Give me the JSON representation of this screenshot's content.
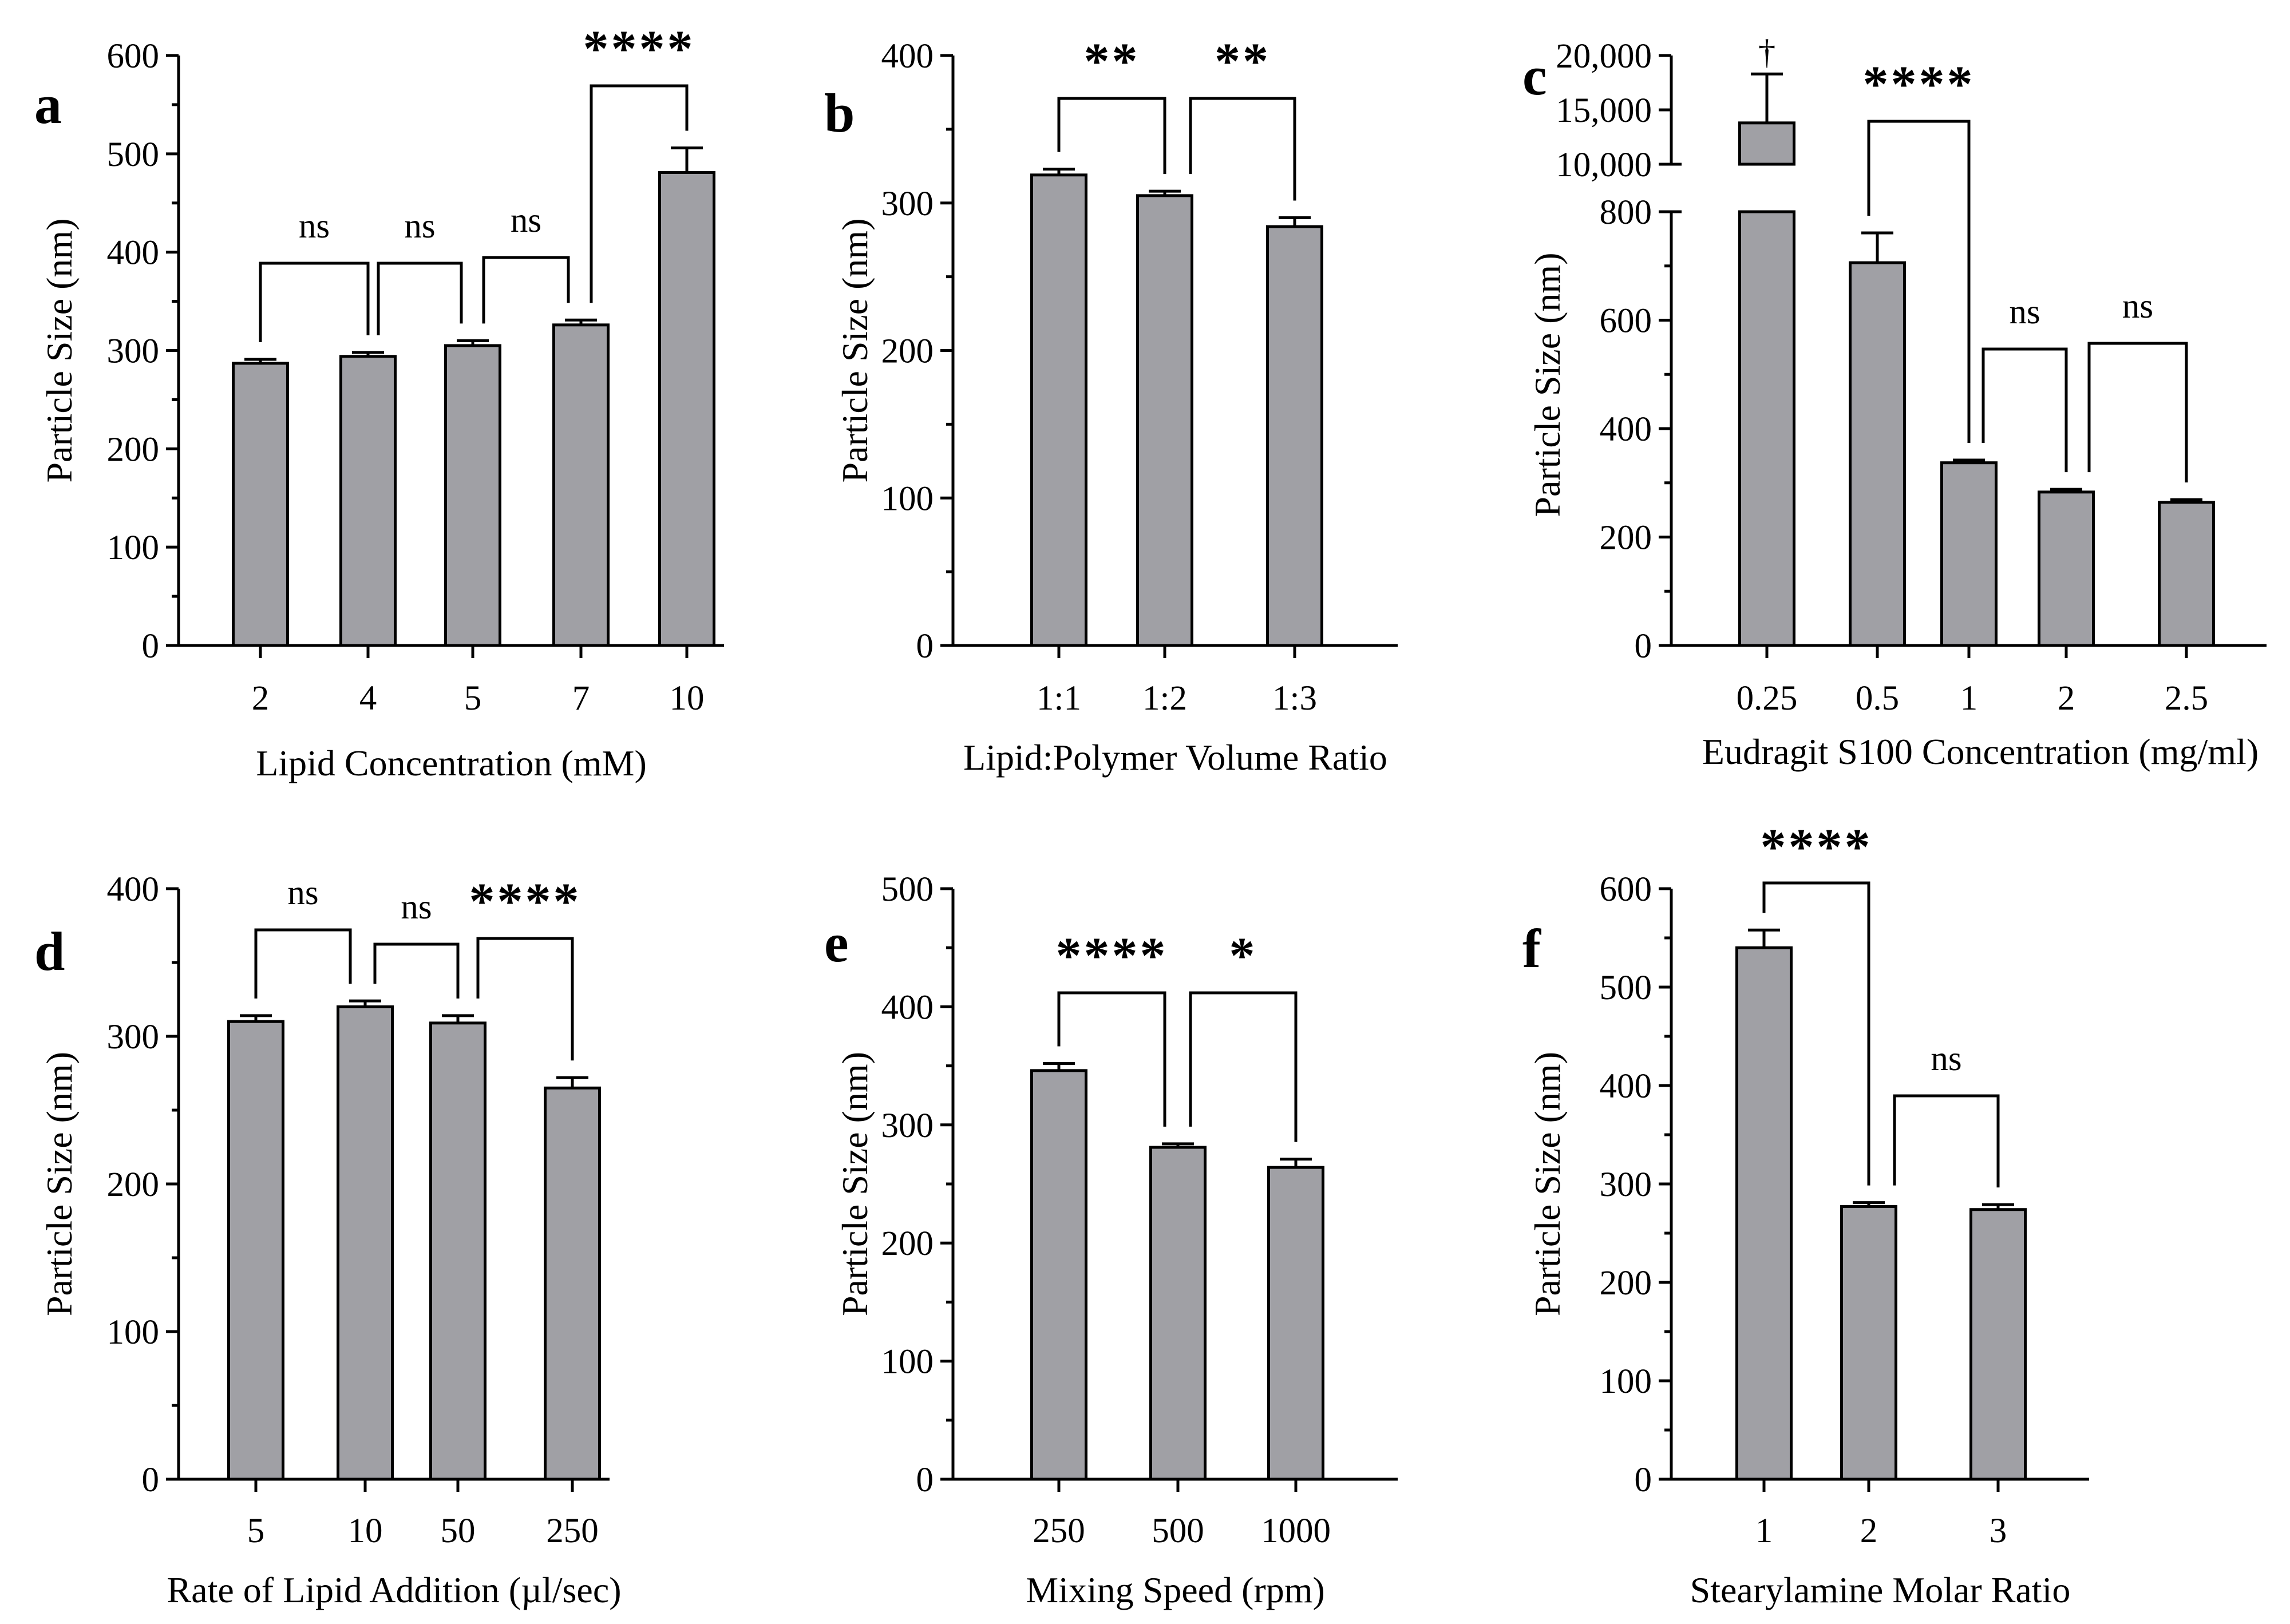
{
  "chart_data": [
    {
      "id": "a",
      "type": "bar",
      "panel_letter": "a",
      "ylabel": "Particle Size (nm)",
      "xlabel": "Lipid Concentration (mM)",
      "ylim": [
        0,
        600
      ],
      "yticks": [
        0,
        100,
        200,
        300,
        400,
        500,
        600
      ],
      "ytick_labels": [
        "0",
        "100",
        "200",
        "300",
        "400",
        "500",
        "600"
      ],
      "categories": [
        "2",
        "4",
        "5",
        "7",
        "10"
      ],
      "values": [
        287,
        294,
        305,
        326,
        481
      ],
      "errors": [
        4,
        4,
        5,
        5,
        25
      ],
      "comparisons": [
        {
          "from": 0,
          "to": 1,
          "label": "ns"
        },
        {
          "from": 1,
          "to": 2,
          "label": "ns"
        },
        {
          "from": 2,
          "to": 3,
          "label": "ns"
        },
        {
          "from": 3,
          "to": 4,
          "label": "****"
        }
      ]
    },
    {
      "id": "b",
      "type": "bar",
      "panel_letter": "b",
      "ylabel": "Particle Size (nm)",
      "xlabel": "Lipid:Polymer Volume Ratio",
      "ylim": [
        0,
        400
      ],
      "yticks": [
        0,
        100,
        200,
        300,
        400
      ],
      "ytick_labels": [
        "0",
        "100",
        "200",
        "300",
        "400"
      ],
      "categories": [
        "1:1",
        "1:2",
        "1:3"
      ],
      "values": [
        319,
        305,
        284
      ],
      "errors": [
        4,
        3,
        6
      ],
      "comparisons": [
        {
          "from": 0,
          "to": 1,
          "label": "**"
        },
        {
          "from": 1,
          "to": 2,
          "label": "**"
        }
      ]
    },
    {
      "id": "c",
      "type": "bar",
      "panel_letter": "c",
      "ylabel": "Particle Size (nm)",
      "xlabel": "Eudragit S100 Concentration (mg/ml)",
      "broken_axis": true,
      "ylim_lower": [
        0,
        800
      ],
      "ylim_upper": [
        10000,
        20000
      ],
      "yticks_lower": [
        0,
        200,
        400,
        600,
        800
      ],
      "ytick_labels_lower": [
        "0",
        "200",
        "400",
        "600",
        "800"
      ],
      "yticks_upper": [
        10000,
        15000,
        20000
      ],
      "ytick_labels_upper": [
        "10,000",
        "15,000",
        "20,000"
      ],
      "categories": [
        "0.25",
        "0.5",
        "1",
        "2",
        "2.5"
      ],
      "values": [
        13800,
        706,
        337,
        283,
        264
      ],
      "errors": [
        4500,
        55,
        5,
        5,
        5
      ],
      "bar_annotations": [
        {
          "index": 0,
          "label": "†"
        }
      ],
      "comparisons": [
        {
          "from": 1,
          "to": 2,
          "label": "****"
        },
        {
          "from": 2,
          "to": 3,
          "label": "ns"
        },
        {
          "from": 3,
          "to": 4,
          "label": "ns"
        }
      ]
    },
    {
      "id": "d",
      "type": "bar",
      "panel_letter": "d",
      "ylabel": "Particle Size (nm)",
      "xlabel": "Rate of Lipid Addition (µl/sec)",
      "ylim": [
        0,
        400
      ],
      "yticks": [
        0,
        100,
        200,
        300,
        400
      ],
      "ytick_labels": [
        "0",
        "100",
        "200",
        "300",
        "400"
      ],
      "categories": [
        "5",
        "10",
        "50",
        "250"
      ],
      "values": [
        310,
        320,
        309,
        265
      ],
      "errors": [
        4,
        4,
        5,
        7
      ],
      "comparisons": [
        {
          "from": 0,
          "to": 1,
          "label": "ns"
        },
        {
          "from": 1,
          "to": 2,
          "label": "ns"
        },
        {
          "from": 2,
          "to": 3,
          "label": "****"
        }
      ]
    },
    {
      "id": "e",
      "type": "bar",
      "panel_letter": "e",
      "ylabel": "Particle Size (nm)",
      "xlabel": "Mixing Speed (rpm)",
      "ylim": [
        0,
        500
      ],
      "yticks": [
        0,
        100,
        200,
        300,
        400,
        500
      ],
      "ytick_labels": [
        "0",
        "100",
        "200",
        "300",
        "400",
        "500"
      ],
      "categories": [
        "250",
        "500",
        "1000"
      ],
      "values": [
        346,
        281,
        264
      ],
      "errors": [
        6,
        3,
        7
      ],
      "comparisons": [
        {
          "from": 0,
          "to": 1,
          "label": "****"
        },
        {
          "from": 1,
          "to": 2,
          "label": "*"
        }
      ]
    },
    {
      "id": "f",
      "type": "bar",
      "panel_letter": "f",
      "ylabel": "Particle Size (nm)",
      "xlabel": "Stearylamine Molar Ratio",
      "ylim": [
        0,
        600
      ],
      "yticks": [
        0,
        100,
        200,
        300,
        400,
        500,
        600
      ],
      "ytick_labels": [
        "0",
        "100",
        "200",
        "300",
        "400",
        "500",
        "600"
      ],
      "categories": [
        "1",
        "2",
        "3"
      ],
      "values": [
        540,
        277,
        274
      ],
      "errors": [
        18,
        4,
        5
      ],
      "comparisons": [
        {
          "from": 0,
          "to": 1,
          "label": "****"
        },
        {
          "from": 1,
          "to": 2,
          "label": "ns"
        }
      ]
    }
  ],
  "colors": {
    "bar_fill": "#a0a0a5",
    "stroke": "#000000",
    "background": "#ffffff"
  }
}
